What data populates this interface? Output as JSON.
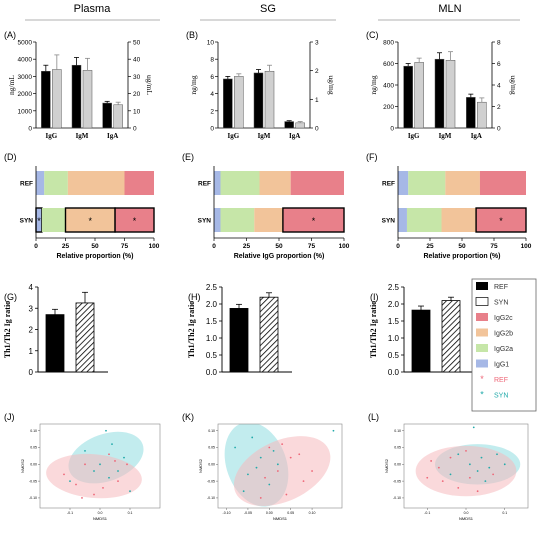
{
  "columns": [
    "Plasma",
    "SG",
    "MLN"
  ],
  "colors": {
    "IgG2c": "#e8808a",
    "IgG2b": "#f2c49a",
    "IgG2a": "#c6e6a8",
    "IgG1": "#a6b8e6",
    "REF_bar": "#000000",
    "SYN_bar": "#d0d0d0",
    "REF_point": "#ee6677",
    "SYN_point": "#22aaaa",
    "REF_ellipse": "#f6b9bd",
    "SYN_ellipse": "#8fdde0"
  },
  "legend": {
    "items": [
      {
        "label": "REF",
        "kind": "bar-ref"
      },
      {
        "label": "SYN",
        "kind": "bar-syn"
      },
      {
        "label": "IgG2c",
        "kind": "IgG2c"
      },
      {
        "label": "IgG2b",
        "kind": "IgG2b"
      },
      {
        "label": "IgG2a",
        "kind": "IgG2a"
      },
      {
        "label": "IgG1",
        "kind": "IgG1"
      },
      {
        "label": "REF",
        "kind": "pt-ref"
      },
      {
        "label": "SYN",
        "kind": "pt-syn"
      }
    ]
  },
  "chart_data": [
    {
      "panel": "(A)",
      "type": "bar",
      "categories": [
        "IgG",
        "IgM",
        "IgA"
      ],
      "ylabel_left": "ng/mL",
      "ylabel_right": "ug/mL",
      "yticks_left": [
        "0",
        "1000",
        "2000",
        "3000",
        "4000",
        "5000"
      ],
      "yticks_right": [
        "0",
        "10",
        "20",
        "30",
        "40",
        "50"
      ],
      "ylim": [
        0,
        5000
      ],
      "series": [
        {
          "values": [
            3300,
            3650,
            1450
          ],
          "errors": [
            350,
            450,
            100
          ]
        },
        {
          "values": [
            3400,
            3350,
            1350
          ],
          "errors": [
            850,
            700,
            150
          ]
        }
      ]
    },
    {
      "panel": "(B)",
      "type": "bar",
      "categories": [
        "IgG",
        "IgM",
        "IgA"
      ],
      "ylabel_left": "ng/mg",
      "ylabel_right": "ug/mg",
      "yticks_left": [
        "0",
        "2",
        "4",
        "6",
        "8",
        "10"
      ],
      "yticks_right": [
        "0",
        "1",
        "2",
        "3"
      ],
      "ylim": [
        0,
        10
      ],
      "series": [
        {
          "values": [
            5.7,
            6.4,
            0.75
          ],
          "errors": [
            0.3,
            0.4,
            0.1
          ]
        },
        {
          "values": [
            6.0,
            6.6,
            0.6
          ],
          "errors": [
            0.3,
            0.7,
            0.15
          ]
        }
      ]
    },
    {
      "panel": "(C)",
      "type": "bar",
      "categories": [
        "IgG",
        "IgM",
        "IgA"
      ],
      "ylabel_left": "ng/mg",
      "ylabel_right": "ug/mg",
      "yticks_left": [
        "0",
        "200",
        "400",
        "600",
        "800"
      ],
      "yticks_right": [
        "0",
        "2",
        "4",
        "6",
        "8"
      ],
      "ylim": [
        0,
        800
      ],
      "series": [
        {
          "values": [
            575,
            640,
            285
          ],
          "errors": [
            25,
            60,
            30
          ]
        },
        {
          "values": [
            610,
            630,
            240
          ],
          "errors": [
            40,
            80,
            40
          ]
        }
      ]
    },
    {
      "panel": "(D)",
      "type": "stacked-bar",
      "xlabel": "Relative proportion (%)",
      "categories": [
        "REF",
        "SYN"
      ],
      "xticks": [
        "0",
        "25",
        "50",
        "75",
        "100"
      ],
      "rows": [
        {
          "label": "REF",
          "segments": [
            {
              "k": "IgG1",
              "v": 7
            },
            {
              "k": "IgG2a",
              "v": 20
            },
            {
              "k": "IgG2b",
              "v": 48
            },
            {
              "k": "IgG2c",
              "v": 25
            }
          ],
          "stars": []
        },
        {
          "label": "SYN",
          "segments": [
            {
              "k": "IgG1",
              "v": 5
            },
            {
              "k": "IgG2a",
              "v": 20
            },
            {
              "k": "IgG2b",
              "v": 42
            },
            {
              "k": "IgG2c",
              "v": 33
            }
          ],
          "stars": [
            0,
            2,
            3
          ]
        }
      ],
      "star": "*"
    },
    {
      "panel": "(E)",
      "type": "stacked-bar",
      "xlabel": "Relative IgG proportion (%)",
      "categories": [
        "REF",
        "SYN"
      ],
      "xticks": [
        "0",
        "25",
        "50",
        "75",
        "100"
      ],
      "rows": [
        {
          "label": "REF",
          "segments": [
            {
              "k": "IgG1",
              "v": 5
            },
            {
              "k": "IgG2a",
              "v": 30
            },
            {
              "k": "IgG2b",
              "v": 24
            },
            {
              "k": "IgG2c",
              "v": 41
            }
          ],
          "stars": []
        },
        {
          "label": "SYN",
          "segments": [
            {
              "k": "IgG1",
              "v": 5
            },
            {
              "k": "IgG2a",
              "v": 26
            },
            {
              "k": "IgG2b",
              "v": 22
            },
            {
              "k": "IgG2c",
              "v": 47
            }
          ],
          "stars": [
            3
          ]
        }
      ],
      "star": "*"
    },
    {
      "panel": "(F)",
      "type": "stacked-bar",
      "xlabel": "Relative proportion (%)",
      "categories": [
        "REF",
        "SYN"
      ],
      "xticks": [
        "0",
        "25",
        "50",
        "75",
        "100"
      ],
      "rows": [
        {
          "label": "REF",
          "segments": [
            {
              "k": "IgG1",
              "v": 8
            },
            {
              "k": "IgG2a",
              "v": 29
            },
            {
              "k": "IgG2b",
              "v": 27
            },
            {
              "k": "IgG2c",
              "v": 36
            }
          ],
          "stars": []
        },
        {
          "label": "SYN",
          "segments": [
            {
              "k": "IgG1",
              "v": 7
            },
            {
              "k": "IgG2a",
              "v": 27
            },
            {
              "k": "IgG2b",
              "v": 27
            },
            {
              "k": "IgG2c",
              "v": 39
            }
          ],
          "stars": [
            3
          ]
        }
      ],
      "star": "*"
    },
    {
      "panel": "(G)",
      "type": "bar",
      "ylabel": "Th1/Th2 Ig ratio",
      "yticks": [
        "0",
        "1",
        "2",
        "3",
        "4"
      ],
      "ylim": [
        0,
        4
      ],
      "series": [
        {
          "values": [
            2.7
          ],
          "errors": [
            0.25
          ]
        },
        {
          "values": [
            3.25
          ],
          "errors": [
            0.5
          ]
        }
      ]
    },
    {
      "panel": "(H)",
      "type": "bar",
      "ylabel": "Th1/Th2 Ig ratio",
      "yticks": [
        "0.0",
        "0.5",
        "1.0",
        "1.5",
        "2.0",
        "2.5"
      ],
      "ylim": [
        0,
        2.5
      ],
      "series": [
        {
          "values": [
            1.87
          ],
          "errors": [
            0.12
          ]
        },
        {
          "values": [
            2.2
          ],
          "errors": [
            0.13
          ]
        }
      ]
    },
    {
      "panel": "(I)",
      "type": "bar",
      "ylabel": "Th1/Th2 Ig ratio",
      "yticks": [
        "0.0",
        "0.5",
        "1.0",
        "1.5",
        "2.0",
        "2.5"
      ],
      "ylim": [
        0,
        2.5
      ],
      "series": [
        {
          "values": [
            1.82
          ],
          "errors": [
            0.12
          ]
        },
        {
          "values": [
            2.1
          ],
          "errors": [
            0.1
          ]
        }
      ]
    },
    {
      "panel": "(J)",
      "type": "scatter",
      "xlabel": "NMDS1",
      "ylabel": "NMDS2",
      "xlim": [
        -0.2,
        0.2
      ],
      "ylim": [
        -0.13,
        0.12
      ],
      "xticks": [
        {
          "v": -0.1,
          "l": "-0.1"
        },
        {
          "v": 0,
          "l": "0.0"
        },
        {
          "v": 0.1,
          "l": "0.1"
        }
      ],
      "yticks": [
        {
          "v": 0.1,
          "l": "0.10"
        },
        {
          "v": 0.05,
          "l": "0.05"
        },
        {
          "v": 0,
          "l": "0.00"
        },
        {
          "v": -0.05,
          "l": "-0.05"
        },
        {
          "v": -0.1,
          "l": "-0.10"
        }
      ],
      "ellipses": [
        {
          "group": "SYN",
          "cx": 0.02,
          "cy": 0.02,
          "rx": 0.13,
          "ry": 0.07,
          "angle": -20
        },
        {
          "group": "REF",
          "cx": -0.02,
          "cy": -0.035,
          "rx": 0.16,
          "ry": 0.065,
          "angle": 5
        }
      ],
      "points": [
        {
          "g": "SYN",
          "x": -0.05,
          "y": 0.04
        },
        {
          "g": "SYN",
          "x": 0.02,
          "y": 0.1
        },
        {
          "g": "SYN",
          "x": 0.04,
          "y": 0.06
        },
        {
          "g": "SYN",
          "x": 0.08,
          "y": 0.02
        },
        {
          "g": "SYN",
          "x": 0.0,
          "y": 0.0
        },
        {
          "g": "SYN",
          "x": 0.06,
          "y": -0.02
        },
        {
          "g": "SYN",
          "x": -0.1,
          "y": -0.05
        },
        {
          "g": "SYN",
          "x": 0.1,
          "y": -0.08
        },
        {
          "g": "SYN",
          "x": 0.03,
          "y": -0.04
        },
        {
          "g": "SYN",
          "x": -0.02,
          "y": -0.02
        },
        {
          "g": "REF",
          "x": -0.08,
          "y": -0.06
        },
        {
          "g": "REF",
          "x": -0.05,
          "y": 0.0
        },
        {
          "g": "REF",
          "x": 0.03,
          "y": 0.03
        },
        {
          "g": "REF",
          "x": 0.06,
          "y": -0.05
        },
        {
          "g": "REF",
          "x": -0.02,
          "y": -0.09
        },
        {
          "g": "REF",
          "x": 0.05,
          "y": 0.01
        },
        {
          "g": "REF",
          "x": -0.12,
          "y": -0.03
        },
        {
          "g": "REF",
          "x": 0.01,
          "y": -0.07
        },
        {
          "g": "REF",
          "x": 0.09,
          "y": 0.0
        },
        {
          "g": "REF",
          "x": -0.06,
          "y": -0.1
        }
      ]
    },
    {
      "panel": "(K)",
      "type": "scatter",
      "xlabel": "NMDS1",
      "ylabel": "NMDS2",
      "xlim": [
        -0.12,
        0.17
      ],
      "ylim": [
        -0.13,
        0.12
      ],
      "xticks": [
        {
          "v": -0.1,
          "l": "-0.10"
        },
        {
          "v": -0.05,
          "l": "-0.05"
        },
        {
          "v": 0,
          "l": "0.00"
        },
        {
          "v": 0.05,
          "l": "0.05"
        },
        {
          "v": 0.1,
          "l": "0.10"
        }
      ],
      "yticks": [
        {
          "v": 0.1,
          "l": "0.10"
        },
        {
          "v": 0.05,
          "l": "0.05"
        },
        {
          "v": 0,
          "l": "0.00"
        },
        {
          "v": -0.05,
          "l": "-0.05"
        },
        {
          "v": -0.1,
          "l": "-0.10"
        }
      ],
      "ellipses": [
        {
          "group": "SYN",
          "cx": -0.03,
          "cy": 0.0,
          "rx": 0.07,
          "ry": 0.13,
          "angle": -20
        },
        {
          "group": "REF",
          "cx": 0.03,
          "cy": -0.02,
          "rx": 0.12,
          "ry": 0.09,
          "angle": -25
        }
      ],
      "points": [
        {
          "g": "SYN",
          "x": -0.08,
          "y": 0.05
        },
        {
          "g": "SYN",
          "x": -0.04,
          "y": 0.08
        },
        {
          "g": "SYN",
          "x": -0.02,
          "y": 0.02
        },
        {
          "g": "SYN",
          "x": -0.05,
          "y": -0.03
        },
        {
          "g": "SYN",
          "x": 0.0,
          "y": -0.06
        },
        {
          "g": "SYN",
          "x": -0.06,
          "y": -0.08
        },
        {
          "g": "SYN",
          "x": 0.02,
          "y": 0.0
        },
        {
          "g": "SYN",
          "x": 0.15,
          "y": 0.1
        },
        {
          "g": "SYN",
          "x": -0.03,
          "y": -0.01
        },
        {
          "g": "SYN",
          "x": 0.01,
          "y": 0.04
        },
        {
          "g": "REF",
          "x": 0.02,
          "y": -0.02
        },
        {
          "g": "REF",
          "x": 0.05,
          "y": 0.02
        },
        {
          "g": "REF",
          "x": 0.08,
          "y": -0.05
        },
        {
          "g": "REF",
          "x": -0.01,
          "y": -0.04
        },
        {
          "g": "REF",
          "x": 0.04,
          "y": -0.09
        },
        {
          "g": "REF",
          "x": 0.0,
          "y": 0.05
        },
        {
          "g": "REF",
          "x": 0.07,
          "y": 0.03
        },
        {
          "g": "REF",
          "x": -0.02,
          "y": -0.1
        },
        {
          "g": "REF",
          "x": 0.03,
          "y": 0.06
        },
        {
          "g": "REF",
          "x": 0.1,
          "y": -0.02
        }
      ]
    },
    {
      "panel": "(L)",
      "type": "scatter",
      "xlabel": "NMDS1",
      "ylabel": "NMDS2",
      "xlim": [
        -0.16,
        0.16
      ],
      "ylim": [
        -0.13,
        0.12
      ],
      "xticks": [
        {
          "v": -0.1,
          "l": "-0.1"
        },
        {
          "v": 0,
          "l": "0.0"
        },
        {
          "v": 0.1,
          "l": "0.1"
        }
      ],
      "yticks": [
        {
          "v": 0.1,
          "l": "0.10"
        },
        {
          "v": 0.05,
          "l": "0.05"
        },
        {
          "v": 0,
          "l": "0.00"
        },
        {
          "v": -0.05,
          "l": "-0.05"
        },
        {
          "v": -0.1,
          "l": "-0.10"
        }
      ],
      "ellipses": [
        {
          "group": "SYN",
          "cx": 0.03,
          "cy": 0.0,
          "rx": 0.11,
          "ry": 0.06,
          "angle": 0
        },
        {
          "group": "REF",
          "cx": 0.0,
          "cy": -0.02,
          "rx": 0.13,
          "ry": 0.075,
          "angle": 0
        }
      ],
      "points": [
        {
          "g": "SYN",
          "x": 0.02,
          "y": 0.11
        },
        {
          "g": "SYN",
          "x": 0.04,
          "y": 0.02
        },
        {
          "g": "SYN",
          "x": 0.06,
          "y": -0.01
        },
        {
          "g": "SYN",
          "x": 0.01,
          "y": 0.0
        },
        {
          "g": "SYN",
          "x": 0.08,
          "y": 0.03
        },
        {
          "g": "SYN",
          "x": -0.02,
          "y": 0.03
        },
        {
          "g": "SYN",
          "x": 0.05,
          "y": -0.05
        },
        {
          "g": "SYN",
          "x": 0.1,
          "y": 0.0
        },
        {
          "g": "SYN",
          "x": -0.04,
          "y": -0.03
        },
        {
          "g": "SYN",
          "x": 0.03,
          "y": -0.02
        },
        {
          "g": "REF",
          "x": -0.09,
          "y": 0.01
        },
        {
          "g": "REF",
          "x": -0.06,
          "y": -0.05
        },
        {
          "g": "REF",
          "x": -0.02,
          "y": -0.07
        },
        {
          "g": "REF",
          "x": 0.0,
          "y": 0.04
        },
        {
          "g": "REF",
          "x": -0.1,
          "y": -0.04
        },
        {
          "g": "REF",
          "x": 0.03,
          "y": -0.08
        },
        {
          "g": "REF",
          "x": -0.04,
          "y": 0.02
        },
        {
          "g": "REF",
          "x": 0.07,
          "y": -0.03
        },
        {
          "g": "REF",
          "x": -0.07,
          "y": -0.01
        },
        {
          "g": "REF",
          "x": 0.01,
          "y": -0.04
        }
      ]
    }
  ]
}
